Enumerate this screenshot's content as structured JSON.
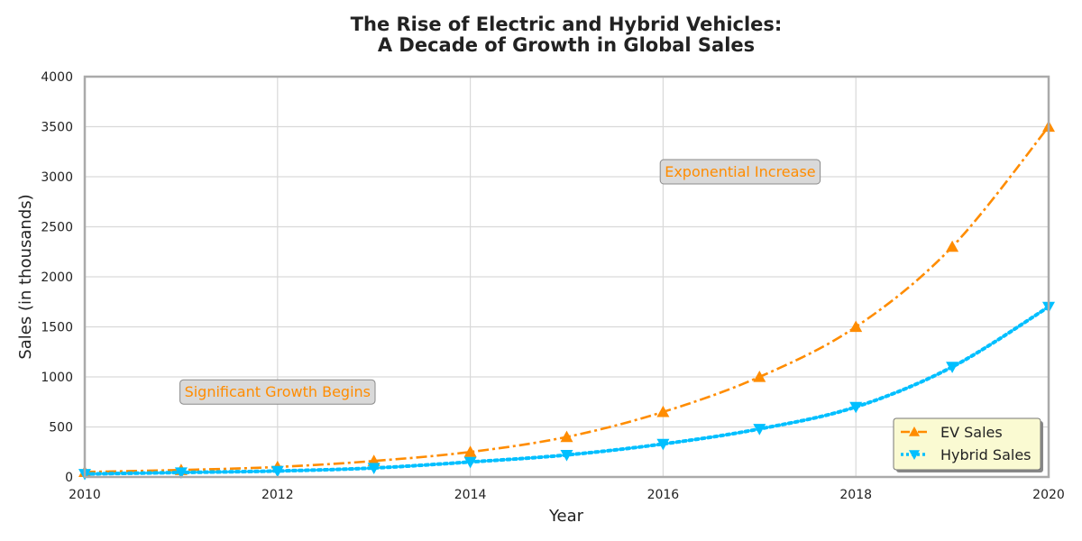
{
  "chart_data": {
    "type": "line",
    "title_line1": "The Rise of Electric and Hybrid Vehicles:",
    "title_line2": "A Decade of Growth in Global Sales",
    "xlabel": "Year",
    "ylabel": "Sales (in thousands)",
    "xlim": [
      2010,
      2020
    ],
    "ylim": [
      0,
      4000
    ],
    "x_ticks": [
      "2010",
      "2012",
      "2014",
      "2016",
      "2018",
      "2020"
    ],
    "y_ticks": [
      "0",
      "500",
      "1000",
      "1500",
      "2000",
      "2500",
      "3000",
      "3500",
      "4000"
    ],
    "grid": true,
    "legend_position": "lower-right",
    "x": [
      2010,
      2011,
      2012,
      2013,
      2014,
      2015,
      2016,
      2017,
      2018,
      2019,
      2020
    ],
    "series": [
      {
        "name": "EV Sales",
        "values": [
          50,
          70,
          100,
          160,
          250,
          400,
          650,
          1000,
          1500,
          2300,
          3500
        ],
        "color": "#ff8c00",
        "marker": "triangle-up",
        "line_style": "dash-dot"
      },
      {
        "name": "Hybrid Sales",
        "values": [
          30,
          45,
          60,
          90,
          150,
          220,
          330,
          480,
          700,
          1100,
          1700
        ],
        "color": "#00bfff",
        "marker": "triangle-down",
        "line_style": "dotted"
      }
    ],
    "annotations": [
      {
        "text": "Significant Growth Begins",
        "x": 2012,
        "y": 800,
        "color": "#ff8c00"
      },
      {
        "text": "Exponential Increase",
        "x": 2016.8,
        "y": 3000,
        "color": "#ff8c00"
      }
    ]
  }
}
